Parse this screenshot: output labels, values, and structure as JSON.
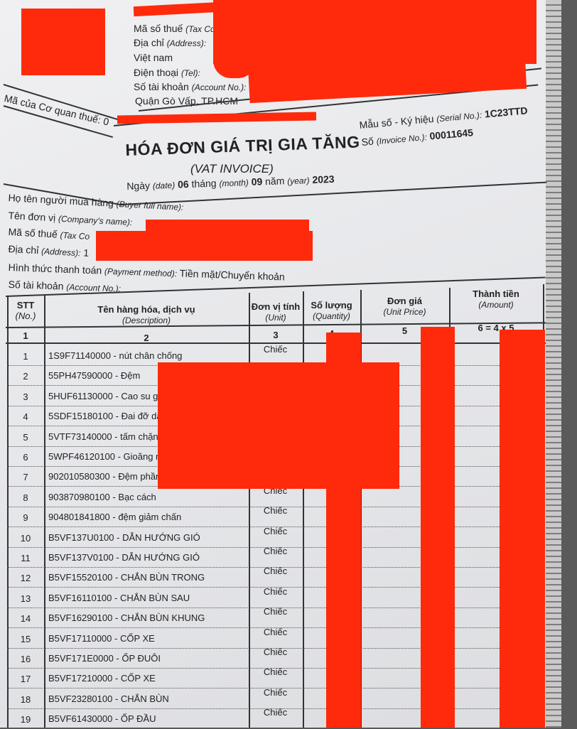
{
  "seller": {
    "tax_code_label": "Mã số thuế",
    "tax_code_label_en": "(Tax Co",
    "address_label": "Địa chỉ",
    "address_label_en": "(Address):",
    "address_line2": "Việt nam",
    "phone_label": "Điện thoại",
    "phone_label_en": "(Tel):",
    "account_label": "Số tài khoản",
    "account_label_en": "(Account No.):",
    "district": "Quận Gò Vấp, TP.HCM"
  },
  "tax_authority_code_label": "Mã của Cơ quan thuế:",
  "tax_authority_code_visible": "0",
  "invoice": {
    "title": "HÓA ĐƠN GIÁ TRỊ GIA TĂNG",
    "subtitle": "(VAT INVOICE)",
    "serial_label": "Mẫu số - Ký hiệu",
    "serial_label_en": "(Serial No.):",
    "serial": "1C23TTD",
    "number_label": "Số",
    "number_label_en": "(Invoice No.):",
    "number": "00011645",
    "date_label": "Ngày",
    "date_label_en": "(date)",
    "day": "06",
    "month_label": "tháng",
    "month_label_en": "(month)",
    "month": "09",
    "year_label": "năm",
    "year_label_en": "(year)",
    "year": "2023"
  },
  "buyer": {
    "name_label": "Họ tên người mua hàng",
    "name_label_en": "(Buyer full name):",
    "company_label": "Tên đơn vị",
    "company_label_en": "(Company's name):",
    "tax_code_label": "Mã số thuế",
    "tax_code_label_en": "(Tax Co",
    "address_label": "Địa chỉ",
    "address_label_en": "(Address):",
    "address_visible": "1",
    "payment_label": "Hình thức thanh toán",
    "payment_label_en": "(Payment method):",
    "payment": "Tiền mặt/Chuyển khoản",
    "account_label": "Số tài khoản",
    "account_label_en": "(Account No.):"
  },
  "table": {
    "headers": [
      {
        "vi": "STT",
        "en": "(No.)",
        "num": "1"
      },
      {
        "vi": "Tên hàng hóa, dịch vụ",
        "en": "(Description)",
        "num": "2"
      },
      {
        "vi": "Đơn vị tính",
        "en": "(Unit)",
        "num": "3"
      },
      {
        "vi": "Số lượng",
        "en": "(Quantity)",
        "num": "4"
      },
      {
        "vi": "Đơn giá",
        "en": "(Unit Price)",
        "num": "5"
      },
      {
        "vi": "Thành tiền",
        "en": "(Amount)",
        "num": "6 = 4 x 5"
      }
    ],
    "rows": [
      {
        "no": "1",
        "desc": "1S9F71140000 - nút chân chống",
        "unit": "Chiếc"
      },
      {
        "no": "2",
        "desc": "55PH47590000 - Đệm",
        "unit": ""
      },
      {
        "no": "3",
        "desc": "5HUF61130000 - Cao su gi",
        "unit": ""
      },
      {
        "no": "4",
        "desc": "5SDF15180100 - Đai đỡ dâ",
        "unit": ""
      },
      {
        "no": "5",
        "desc": "5VTF73140000 - tấm chặn",
        "unit": ""
      },
      {
        "no": "6",
        "desc": "5WPF46120100 - Gioăng n",
        "unit": ""
      },
      {
        "no": "7",
        "desc": "902010580300 - Đệm phần",
        "unit": ""
      },
      {
        "no": "8",
        "desc": "903870980100 - Bạc cách",
        "unit": "Chiếc"
      },
      {
        "no": "9",
        "desc": "904801841800 - đệm giảm chấn",
        "unit": "Chiếc"
      },
      {
        "no": "10",
        "desc": "B5VF137U0100 - DẪN HƯỚNG GIÓ",
        "unit": "Chiếc"
      },
      {
        "no": "11",
        "desc": "B5VF137V0100 - DẪN HƯỚNG GIÓ",
        "unit": "Chiếc"
      },
      {
        "no": "12",
        "desc": "B5VF15520100 - CHẮN BÙN TRONG",
        "unit": "Chiếc"
      },
      {
        "no": "13",
        "desc": "B5VF16110100 - CHẮN BÙN SAU",
        "unit": "Chiếc"
      },
      {
        "no": "14",
        "desc": "B5VF16290100 - CHẮN BÙN KHUNG",
        "unit": "Chiếc"
      },
      {
        "no": "15",
        "desc": "B5VF17110000 - CỐP XE",
        "unit": "Chiếc"
      },
      {
        "no": "16",
        "desc": "B5VF171E0000 - ỐP ĐUÔI",
        "unit": "Chiếc"
      },
      {
        "no": "17",
        "desc": "B5VF17210000 - CỐP XE",
        "unit": "Chiếc"
      },
      {
        "no": "18",
        "desc": "B5VF23280100 - CHẮN BÙN",
        "unit": "Chiếc"
      },
      {
        "no": "19",
        "desc": "B5VF61430000 - ỐP ĐẦU",
        "unit": "Chiếc"
      }
    ]
  },
  "redaction_color": "#ff2a0c"
}
